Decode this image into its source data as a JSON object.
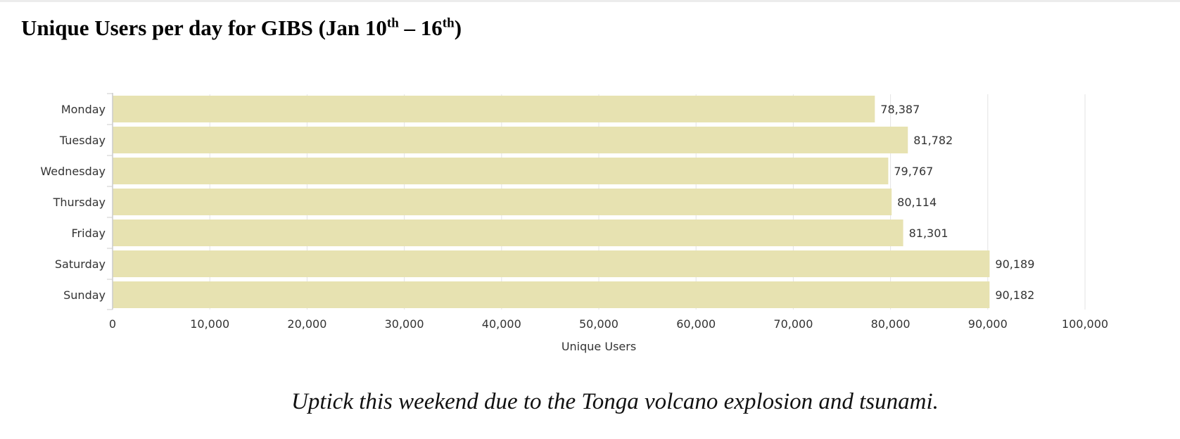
{
  "title": {
    "main": "Unique Users per day for GIBS (Jan 10",
    "sup1": "th",
    "mid": " – 16",
    "sup2": "th",
    "end": ")"
  },
  "caption": "Uptick this weekend due to the Tonga volcano explosion and tsunami.",
  "chart_data": {
    "type": "bar",
    "orientation": "horizontal",
    "categories": [
      "Monday",
      "Tuesday",
      "Wednesday",
      "Thursday",
      "Friday",
      "Saturday",
      "Sunday"
    ],
    "values": [
      78387,
      81782,
      79767,
      80114,
      81301,
      90189,
      90182
    ],
    "value_labels": [
      "78,387",
      "81,782",
      "79,767",
      "80,114",
      "81,301",
      "90,189",
      "90,182"
    ],
    "xlabel": "Unique Users",
    "ylabel": "",
    "xlim": [
      0,
      100000
    ],
    "ticks": [
      0,
      10000,
      20000,
      30000,
      40000,
      50000,
      60000,
      70000,
      80000,
      90000,
      100000
    ],
    "tick_labels": [
      "0",
      "10,000",
      "20,000",
      "30,000",
      "40,000",
      "50,000",
      "60,000",
      "70,000",
      "80,000",
      "90,000",
      "100,000"
    ],
    "grid": "vertical",
    "legend": "none",
    "bar_color": "#e7e2b1"
  }
}
